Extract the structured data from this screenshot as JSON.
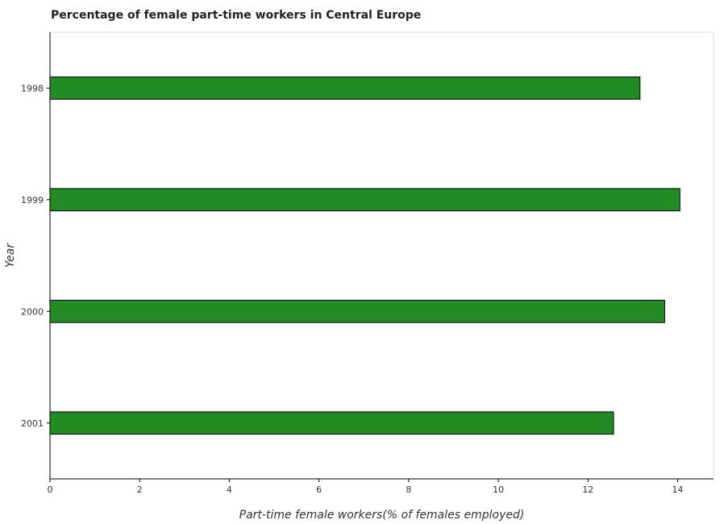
{
  "chart_data": {
    "type": "bar",
    "orientation": "horizontal",
    "title": "Percentage of female part-time workers in Central Europe",
    "xlabel": "Part-time female workers(% of females employed)",
    "ylabel": "Year",
    "categories": [
      "1998",
      "1999",
      "2000",
      "2001"
    ],
    "values": [
      13.16,
      14.05,
      13.71,
      12.57
    ],
    "xlim": [
      0,
      14.8
    ],
    "xticks": [
      0,
      2,
      4,
      6,
      8,
      10,
      12,
      14
    ],
    "grid": false,
    "bar_color": "#238b23",
    "bar_edge_color": "#000000"
  }
}
